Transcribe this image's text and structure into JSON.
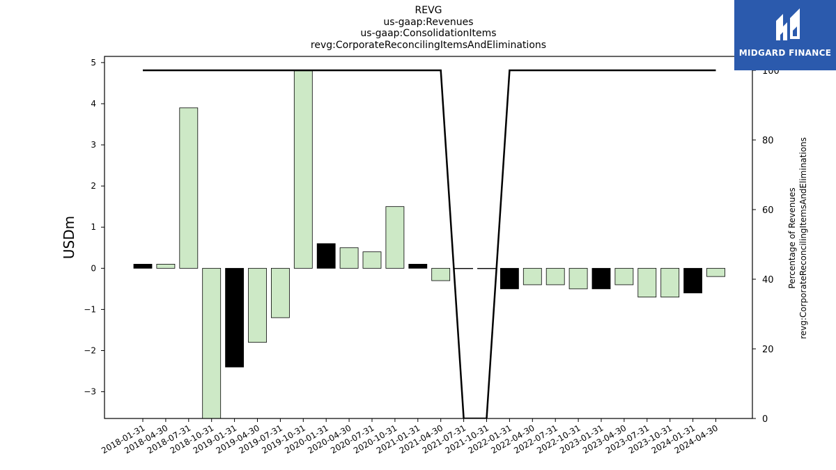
{
  "chart_data": {
    "type": "bar",
    "title_lines": [
      "REVG",
      "us-gaap:Revenues",
      "us-gaap:ConsolidationItems",
      "revg:CorporateReconcilingItemsAndEliminations"
    ],
    "ylabel": "USDm",
    "ylabel_right": [
      "Percentage of Revenues",
      "revg:CorporateReconcilingItemsAndEliminations"
    ],
    "ylim": [
      -3.65,
      5.15
    ],
    "ylim_right": [
      0,
      104
    ],
    "yticks": [
      -3,
      -2,
      -1,
      0,
      1,
      2,
      3,
      4,
      5
    ],
    "yticks_right": [
      0,
      20,
      40,
      60,
      80,
      100
    ],
    "categories": [
      "2018-01-31",
      "2018-04-30",
      "2018-07-31",
      "2018-10-31",
      "2019-01-31",
      "2019-04-30",
      "2019-07-31",
      "2019-10-31",
      "2020-01-31",
      "2020-04-30",
      "2020-07-31",
      "2020-10-31",
      "2021-01-31",
      "2021-04-30",
      "2021-07-31",
      "2021-10-31",
      "2022-01-31",
      "2022-04-30",
      "2022-07-31",
      "2022-10-31",
      "2023-01-31",
      "2023-04-30",
      "2023-07-31",
      "2023-10-31",
      "2024-01-31",
      "2024-04-30"
    ],
    "series": [
      {
        "type": "bar",
        "values": [
          0.1,
          0.1,
          3.9,
          -3.7,
          -2.4,
          -1.8,
          -1.2,
          4.8,
          0.6,
          0.5,
          0.4,
          1.5,
          0.1,
          -0.3,
          0.0,
          0.0,
          -0.5,
          -0.4,
          -0.4,
          -0.5,
          -0.5,
          -0.4,
          -0.7,
          -0.7,
          -0.6,
          -0.2
        ],
        "highlight": [
          true,
          false,
          false,
          false,
          true,
          false,
          false,
          false,
          true,
          false,
          false,
          false,
          true,
          false,
          false,
          false,
          true,
          false,
          false,
          false,
          true,
          false,
          false,
          false,
          true,
          false
        ],
        "color": "#cde9c6",
        "highlight_color": "#000000"
      },
      {
        "type": "line",
        "axis": "right",
        "values": [
          100,
          100,
          100,
          100,
          100,
          100,
          100,
          100,
          100,
          100,
          100,
          100,
          100,
          100,
          0,
          0,
          100,
          100,
          100,
          100,
          100,
          100,
          100,
          100,
          100,
          100
        ],
        "color": "#000000"
      }
    ],
    "grid": false
  },
  "logo": {
    "text": "MIDGARD FINANCE",
    "color": "#2b5aad"
  }
}
